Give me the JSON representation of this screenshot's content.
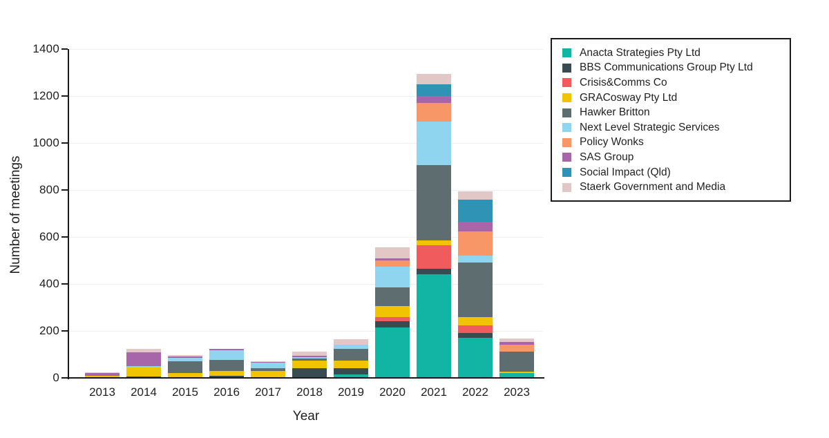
{
  "chart_data": {
    "type": "bar",
    "subtype": "stacked-vertical",
    "title": "",
    "xlabel": "Year",
    "ylabel": "Number of meetings",
    "ylim": [
      0,
      1400
    ],
    "ytick_interval": 200,
    "grid": "horizontal-light",
    "legend_position": "outside-top-right",
    "categories": [
      "2013",
      "2014",
      "2015",
      "2016",
      "2017",
      "2018",
      "2019",
      "2020",
      "2021",
      "2022",
      "2023"
    ],
    "series": [
      {
        "name": "Anacta Strategies Pty Ltd",
        "color": "#12b4a4",
        "values": [
          0,
          0,
          0,
          0,
          0,
          0,
          15,
          215,
          440,
          170,
          20
        ]
      },
      {
        "name": "BBS Communications Group Pty Ltd",
        "color": "#374b50",
        "values": [
          0,
          5,
          0,
          10,
          3,
          40,
          25,
          25,
          25,
          20,
          0
        ]
      },
      {
        "name": "Crisis&Comms Co",
        "color": "#f05c5e",
        "values": [
          0,
          0,
          0,
          0,
          0,
          0,
          0,
          20,
          100,
          35,
          0
        ]
      },
      {
        "name": "GRACosway Pty Ltd",
        "color": "#f0c400",
        "values": [
          8,
          40,
          20,
          20,
          25,
          35,
          35,
          45,
          20,
          35,
          7
        ]
      },
      {
        "name": "Hawker Britton",
        "color": "#5e6d6f",
        "values": [
          0,
          0,
          52,
          48,
          12,
          7,
          50,
          80,
          320,
          230,
          85
        ]
      },
      {
        "name": "Next Level Strategic Services",
        "color": "#90d5f0",
        "values": [
          0,
          5,
          14,
          40,
          24,
          5,
          15,
          90,
          185,
          30,
          0
        ]
      },
      {
        "name": "Policy Wonks",
        "color": "#f79767",
        "values": [
          0,
          0,
          0,
          0,
          0,
          0,
          0,
          25,
          80,
          105,
          30
        ]
      },
      {
        "name": "SAS Group",
        "color": "#a866aa",
        "values": [
          12,
          58,
          4,
          5,
          5,
          6,
          0,
          10,
          30,
          40,
          10
        ]
      },
      {
        "name": "Social Impact (Qld)",
        "color": "#2e93b5",
        "values": [
          0,
          0,
          0,
          0,
          0,
          0,
          0,
          0,
          50,
          95,
          0
        ]
      },
      {
        "name": "Staerk Government and Media",
        "color": "#e2c7c7",
        "values": [
          5,
          15,
          6,
          0,
          2,
          18,
          25,
          45,
          45,
          35,
          15
        ]
      }
    ],
    "totals": [
      25,
      123,
      96,
      123,
      71,
      111,
      165,
      555,
      1295,
      795,
      167
    ],
    "axis_color": "#1a1a1a",
    "gridline_color": "#efefef"
  }
}
